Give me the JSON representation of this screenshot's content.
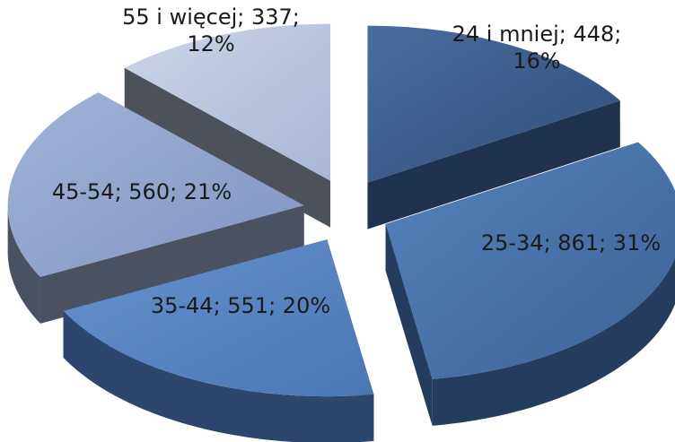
{
  "chart_data": {
    "type": "pie",
    "title": "",
    "style": "3d-exploded",
    "slices": [
      {
        "category": "24 i mniej",
        "value": 448,
        "percent": "16%",
        "label_lines": [
          "24 i mniej; 448;",
          "16%"
        ],
        "color": "#3b5b8a",
        "side_color": "#1f3350"
      },
      {
        "category": "25-34",
        "value": 861,
        "percent": "31%",
        "label_lines": [
          "25-34; 861; 31%"
        ],
        "color": "#4a72a8",
        "side_color": "#243d5e"
      },
      {
        "category": "35-44",
        "value": 551,
        "percent": "20%",
        "label_lines": [
          "35-44; 551; 20%"
        ],
        "color": "#5b87c6",
        "side_color": "#2c466d"
      },
      {
        "category": "45-54",
        "value": 560,
        "percent": "21%",
        "label_lines": [
          "45-54; 560; 21%"
        ],
        "color": "#8ea2cd",
        "side_color": "#4a5160"
      },
      {
        "category": "55 i więcej",
        "value": 337,
        "percent": "12%",
        "label_lines": [
          "55 i więcej; 337;",
          "12%"
        ],
        "color": "#b9c5df",
        "side_color": "#4d5159"
      }
    ]
  }
}
